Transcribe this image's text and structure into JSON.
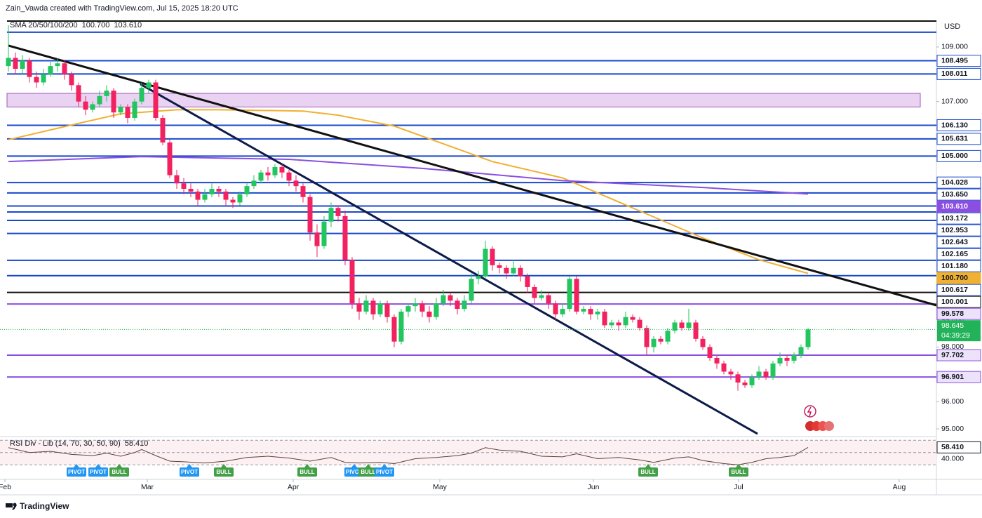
{
  "chart_data": {
    "type": "candlestick",
    "title": "Zain_Vawda created with TradingView.com, Jul 15, 2025 18:20 UTC",
    "currency": "USD",
    "footer": "TradingView",
    "up_color": "#22c55e",
    "down_color": "#f2215f",
    "ylim": [
      94.77,
      109.95
    ],
    "yticks": [
      {
        "value": 95,
        "label": "95.000"
      },
      {
        "value": 96,
        "label": "96.000"
      },
      {
        "value": 97,
        "label": "97.000"
      },
      {
        "value": 98,
        "label": "98.000"
      },
      {
        "value": 99,
        "label": "99.000"
      },
      {
        "value": 100,
        "label": "100.000"
      },
      {
        "value": 101,
        "label": "101.000"
      },
      {
        "value": 102,
        "label": "102.000"
      },
      {
        "value": 103,
        "label": "103.000"
      },
      {
        "value": 104,
        "label": "104.000"
      },
      {
        "value": 105,
        "label": "105.000"
      },
      {
        "value": 106,
        "label": "106.000"
      },
      {
        "value": 107,
        "label": "107.000"
      },
      {
        "value": 108,
        "label": "108.000"
      },
      {
        "value": 109,
        "label": "109.000"
      }
    ],
    "xticks": [
      {
        "value": -0.5,
        "label": "Feb"
      },
      {
        "value": 19.8,
        "label": "Mar"
      },
      {
        "value": 40.6,
        "label": "Apr"
      },
      {
        "value": 61.5,
        "label": "May"
      },
      {
        "value": 83.4,
        "label": "Jun"
      },
      {
        "value": 104.1,
        "label": "Jul"
      },
      {
        "value": 127,
        "label": "Aug"
      }
    ],
    "candles": [
      [
        108.3,
        109.8,
        108.1,
        108.6
      ],
      [
        108.6,
        108.8,
        108.0,
        108.2
      ],
      [
        108.2,
        108.7,
        108.0,
        108.5
      ],
      [
        108.5,
        108.6,
        107.7,
        107.9
      ],
      [
        107.9,
        108.1,
        107.5,
        107.7
      ],
      [
        107.7,
        108.2,
        107.6,
        108.0
      ],
      [
        108.0,
        108.5,
        107.9,
        108.3
      ],
      [
        108.3,
        108.6,
        108.1,
        108.4
      ],
      [
        108.4,
        108.5,
        107.8,
        108.0
      ],
      [
        108.0,
        108.1,
        107.4,
        107.6
      ],
      [
        107.6,
        107.7,
        106.8,
        107.0
      ],
      [
        107.0,
        107.2,
        106.5,
        106.7
      ],
      [
        106.7,
        107.0,
        106.6,
        106.9
      ],
      [
        106.9,
        107.4,
        106.8,
        107.2
      ],
      [
        107.2,
        107.6,
        107.0,
        107.4
      ],
      [
        107.4,
        107.5,
        106.4,
        106.6
      ],
      [
        106.6,
        106.9,
        106.5,
        106.8
      ],
      [
        106.8,
        106.9,
        106.2,
        106.4
      ],
      [
        106.4,
        107.1,
        106.3,
        107.0
      ],
      [
        107.0,
        107.7,
        106.9,
        107.5
      ],
      [
        107.5,
        107.8,
        107.3,
        107.7
      ],
      [
        107.7,
        107.8,
        106.3,
        106.4
      ],
      [
        106.4,
        106.5,
        105.4,
        105.5
      ],
      [
        105.5,
        105.6,
        104.2,
        104.3
      ],
      [
        104.3,
        104.5,
        103.8,
        104.0
      ],
      [
        104.0,
        104.2,
        103.6,
        103.8
      ],
      [
        103.8,
        104.0,
        103.5,
        103.7
      ],
      [
        103.7,
        103.8,
        103.2,
        103.4
      ],
      [
        103.4,
        103.8,
        103.3,
        103.6
      ],
      [
        103.6,
        104.0,
        103.5,
        103.8
      ],
      [
        103.8,
        103.9,
        103.5,
        103.7
      ],
      [
        103.7,
        103.8,
        103.2,
        103.4
      ],
      [
        103.4,
        103.5,
        103.1,
        103.3
      ],
      [
        103.3,
        103.7,
        103.2,
        103.6
      ],
      [
        103.6,
        104.0,
        103.5,
        103.9
      ],
      [
        103.9,
        104.3,
        103.8,
        104.1
      ],
      [
        104.1,
        104.5,
        104.0,
        104.4
      ],
      [
        104.4,
        104.6,
        104.1,
        104.3
      ],
      [
        104.3,
        104.7,
        104.2,
        104.6
      ],
      [
        104.6,
        104.7,
        104.2,
        104.4
      ],
      [
        104.4,
        104.5,
        103.9,
        104.1
      ],
      [
        104.1,
        104.3,
        103.7,
        103.9
      ],
      [
        103.9,
        104.0,
        103.3,
        103.5
      ],
      [
        103.5,
        103.6,
        101.9,
        102.2
      ],
      [
        102.2,
        102.5,
        101.3,
        101.7
      ],
      [
        101.7,
        102.8,
        101.6,
        102.6
      ],
      [
        102.6,
        103.3,
        102.4,
        103.1
      ],
      [
        103.1,
        103.2,
        102.6,
        102.8
      ],
      [
        102.8,
        103.0,
        101.0,
        101.2
      ],
      [
        101.2,
        101.3,
        99.4,
        99.6
      ],
      [
        99.6,
        99.8,
        99.0,
        99.3
      ],
      [
        99.3,
        99.9,
        99.2,
        99.7
      ],
      [
        99.7,
        99.8,
        99.0,
        99.2
      ],
      [
        99.2,
        99.7,
        99.1,
        99.6
      ],
      [
        99.6,
        99.7,
        98.9,
        99.1
      ],
      [
        99.1,
        99.2,
        98.0,
        98.2
      ],
      [
        98.2,
        99.4,
        98.1,
        99.3
      ],
      [
        99.3,
        99.6,
        99.1,
        99.5
      ],
      [
        99.5,
        99.8,
        99.3,
        99.6
      ],
      [
        99.6,
        99.7,
        99.1,
        99.3
      ],
      [
        99.3,
        99.5,
        98.9,
        99.1
      ],
      [
        99.1,
        99.8,
        99.0,
        99.6
      ],
      [
        99.6,
        100.1,
        99.5,
        99.9
      ],
      [
        99.9,
        100.0,
        99.5,
        99.7
      ],
      [
        99.7,
        99.8,
        99.2,
        99.4
      ],
      [
        99.4,
        99.9,
        99.3,
        99.7
      ],
      [
        99.7,
        100.7,
        99.6,
        100.5
      ],
      [
        100.5,
        100.8,
        100.3,
        100.6
      ],
      [
        100.6,
        101.9,
        100.5,
        101.6
      ],
      [
        101.6,
        101.7,
        100.8,
        101.0
      ],
      [
        101.0,
        101.1,
        100.7,
        100.9
      ],
      [
        100.9,
        101.0,
        100.5,
        100.7
      ],
      [
        100.7,
        101.2,
        100.6,
        100.9
      ],
      [
        100.9,
        101.0,
        100.4,
        100.6
      ],
      [
        100.6,
        100.7,
        100.0,
        100.2
      ],
      [
        100.2,
        100.3,
        99.6,
        99.8
      ],
      [
        99.8,
        100.1,
        99.7,
        99.9
      ],
      [
        99.9,
        100.0,
        99.4,
        99.6
      ],
      [
        99.6,
        99.7,
        99.0,
        99.2
      ],
      [
        99.2,
        99.6,
        99.1,
        99.4
      ],
      [
        99.4,
        100.6,
        99.3,
        100.5
      ],
      [
        100.5,
        100.6,
        99.2,
        99.3
      ],
      [
        99.3,
        99.5,
        99.2,
        99.4
      ],
      [
        99.4,
        99.5,
        99.0,
        99.2
      ],
      [
        99.2,
        99.4,
        99.0,
        99.3
      ],
      [
        99.3,
        99.4,
        98.7,
        98.8
      ],
      [
        98.8,
        99.0,
        98.7,
        98.9
      ],
      [
        98.9,
        99.0,
        98.6,
        98.8
      ],
      [
        98.8,
        99.3,
        98.7,
        99.1
      ],
      [
        99.1,
        99.2,
        98.9,
        99.0
      ],
      [
        99.0,
        99.1,
        98.6,
        98.7
      ],
      [
        98.7,
        98.8,
        97.7,
        98.0
      ],
      [
        98.0,
        98.4,
        97.8,
        98.3
      ],
      [
        98.3,
        98.4,
        98.1,
        98.2
      ],
      [
        98.2,
        98.7,
        98.1,
        98.6
      ],
      [
        98.6,
        99.0,
        98.5,
        98.9
      ],
      [
        98.9,
        99.0,
        98.6,
        98.7
      ],
      [
        98.7,
        99.4,
        98.6,
        98.9
      ],
      [
        98.9,
        99.0,
        98.2,
        98.3
      ],
      [
        98.3,
        98.4,
        97.9,
        98.0
      ],
      [
        98.0,
        98.1,
        97.5,
        97.6
      ],
      [
        97.6,
        97.7,
        97.2,
        97.4
      ],
      [
        97.4,
        97.5,
        97.0,
        97.1
      ],
      [
        97.1,
        97.2,
        96.8,
        97.0
      ],
      [
        97.0,
        97.1,
        96.4,
        96.7
      ],
      [
        96.7,
        96.8,
        96.5,
        96.6
      ],
      [
        96.6,
        97.0,
        96.5,
        96.9
      ],
      [
        96.9,
        97.3,
        96.8,
        97.1
      ],
      [
        97.1,
        97.2,
        96.8,
        96.9
      ],
      [
        96.9,
        97.5,
        96.8,
        97.4
      ],
      [
        97.4,
        97.8,
        97.3,
        97.6
      ],
      [
        97.6,
        97.7,
        97.3,
        97.5
      ],
      [
        97.5,
        97.8,
        97.4,
        97.7
      ],
      [
        97.7,
        98.1,
        97.6,
        98.0
      ],
      [
        98.0,
        98.7,
        97.9,
        98.645
      ]
    ],
    "price": {
      "value": 98.645,
      "label": "98.645",
      "countdown": "04:39:29",
      "color": "#22b35a"
    },
    "sma_legend": "SMA 20/50/100/200",
    "sma": [
      {
        "color": "#f0b030",
        "last_label": "100.700",
        "x": [
          0,
          10,
          16,
          24,
          30,
          42,
          47,
          55,
          69,
          79,
          89,
          99,
          107,
          114
        ],
        "values": [
          105.6,
          106.2,
          106.55,
          106.7,
          106.7,
          106.65,
          106.5,
          106.1,
          104.8,
          104.2,
          103.1,
          102.0,
          101.2,
          100.7
        ]
      },
      {
        "color": "#8a4fe0",
        "last_label": "103.610",
        "x": [
          0,
          19,
          40,
          59,
          79,
          99,
          114
        ],
        "values": [
          104.8,
          104.98,
          104.88,
          104.55,
          104.1,
          103.85,
          103.61
        ]
      }
    ],
    "zone": {
      "x": [
        -0.2,
        130
      ],
      "values": [
        106.8,
        107.3
      ],
      "color": "#ead3f2",
      "border": "#9c5ab8"
    },
    "trendlines": [
      {
        "color": "#111111",
        "x": [
          0,
          132.3
        ],
        "values": [
          109.05,
          99.53
        ]
      },
      {
        "color": "#0d1b4a",
        "x": [
          18.8,
          106.8
        ],
        "values": [
          107.64,
          94.82
        ]
      }
    ],
    "levels": [
      {
        "value": 109.95,
        "color": "#111111"
      },
      {
        "value": 109.54,
        "color": "#1848cc"
      },
      {
        "value": 108.495,
        "label": "108.495",
        "color": "#1848cc"
      },
      {
        "value": 108.011,
        "label": "108.011",
        "color": "#1848cc"
      },
      {
        "value": 106.13,
        "label": "106.130",
        "color": "#1848cc"
      },
      {
        "value": 105.631,
        "label": "105.631",
        "color": "#1848cc"
      },
      {
        "value": 105,
        "label": "105.000",
        "color": "#1848cc"
      },
      {
        "value": 104.028,
        "label": "104.028",
        "color": "#1848cc"
      },
      {
        "value": 103.65,
        "label": "103.650",
        "color": "#1848cc"
      },
      {
        "value": 103.172,
        "label": "103.172",
        "color": "#1848cc"
      },
      {
        "value": 102.953,
        "label": "102.953",
        "color": "#1848cc"
      },
      {
        "value": 102.643,
        "label": "102.643",
        "color": "#1848cc"
      },
      {
        "value": 102.165,
        "label": "102.165",
        "color": "#1848cc"
      },
      {
        "value": 101.18,
        "label": "101.180",
        "color": "#1848cc"
      },
      {
        "value": 100.617,
        "label": "100.617",
        "color": "#1848cc"
      },
      {
        "value": 100.001,
        "label": "100.001",
        "color": "#111111"
      },
      {
        "value": 99.578,
        "label": "99.578",
        "color": "#8a4fe0"
      },
      {
        "value": 97.702,
        "label": "97.702",
        "color": "#8a4fe0"
      },
      {
        "value": 96.901,
        "label": "96.901",
        "color": "#8a4fe0"
      }
    ],
    "rsi": {
      "legend": "RSI Div - Lib (14, 70, 30, 50, 90)",
      "last_label": "58.410",
      "color": "#5d4037",
      "ylim": [
        20,
        80
      ],
      "levels": [
        70,
        50,
        30
      ],
      "yticks": [
        {
          "value": 40,
          "label": "40.000"
        }
      ],
      "x": [
        0,
        3,
        6,
        9,
        12,
        14,
        16,
        18,
        19,
        21,
        23,
        25,
        28,
        31,
        34,
        37,
        40,
        43,
        46,
        48,
        50,
        53,
        55,
        58,
        61,
        64,
        66,
        68,
        70,
        73,
        76,
        79,
        81,
        84,
        87,
        90,
        92,
        95,
        97,
        99,
        102,
        104,
        106,
        108,
        110,
        112,
        114
      ],
      "values": [
        58,
        50,
        52,
        47,
        45,
        49,
        44,
        50,
        55,
        45,
        36,
        35,
        33,
        36,
        42,
        44,
        41,
        36,
        42,
        34,
        33,
        34,
        32,
        40,
        42,
        45,
        49,
        58,
        54,
        52,
        44,
        43,
        48,
        40,
        42,
        38,
        34,
        41,
        43,
        37,
        32,
        30,
        34,
        40,
        42,
        45,
        58.41
      ]
    },
    "signals": [
      {
        "x": 9.7,
        "label": "PIVOT",
        "color": "#2196f3"
      },
      {
        "x": 12.8,
        "label": "PIVOT",
        "color": "#2196f3"
      },
      {
        "x": 15.8,
        "label": "BULL",
        "color": "#43a047"
      },
      {
        "x": 25.8,
        "label": "PIVOT",
        "color": "#2196f3"
      },
      {
        "x": 30.7,
        "label": "BULL",
        "color": "#43a047"
      },
      {
        "x": 42.6,
        "label": "BULL",
        "color": "#43a047"
      },
      {
        "x": 49.3,
        "label": "PIVOT",
        "color": "#2196f3"
      },
      {
        "x": 51.3,
        "label": "BULL",
        "color": "#43a047"
      },
      {
        "x": 53.6,
        "label": "PIVOT",
        "color": "#2196f3"
      },
      {
        "x": 91.2,
        "label": "BULL",
        "color": "#43a047"
      },
      {
        "x": 104.1,
        "label": "BULL",
        "color": "#43a047"
      }
    ]
  }
}
